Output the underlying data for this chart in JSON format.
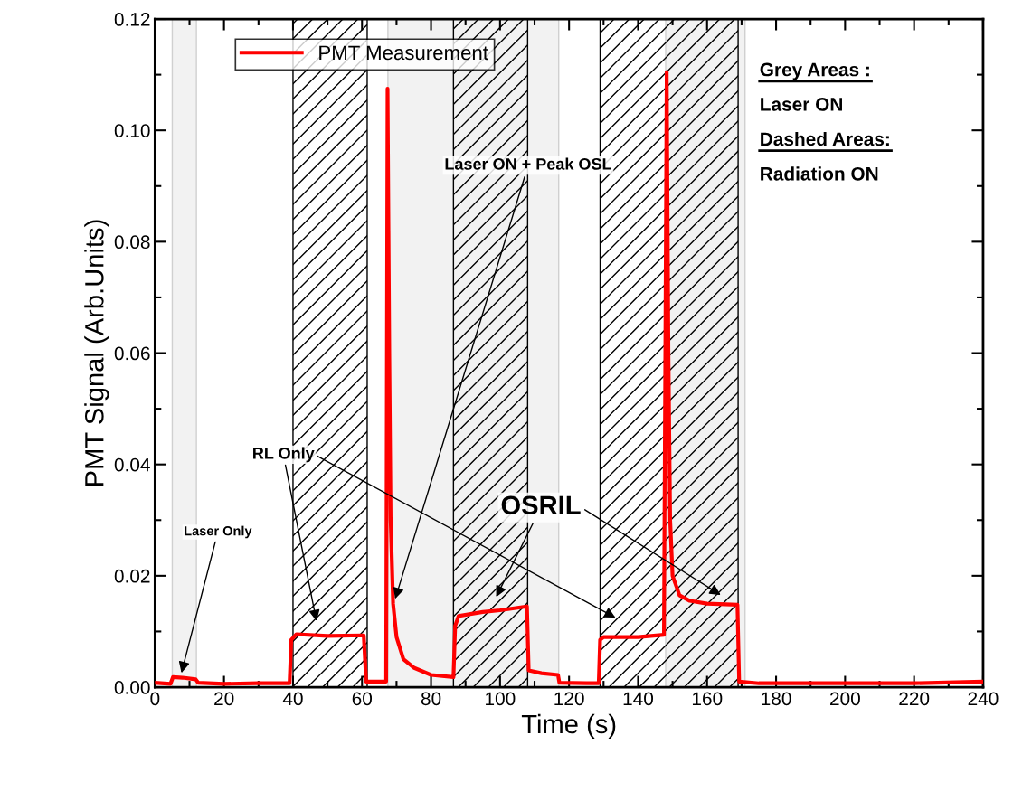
{
  "chart_data": {
    "type": "line",
    "xlabel": "Time (s)",
    "ylabel": "PMT Signal (Arb.Units)",
    "series": [
      {
        "name": "PMT Measurement",
        "color": "#ff0000",
        "x": [
          0,
          4.5,
          5.2,
          8,
          11.8,
          12.5,
          20,
          30,
          39,
          39.5,
          41,
          50,
          60.5,
          61.2,
          67,
          67.4,
          67.9,
          68.3,
          69,
          70,
          72,
          75,
          80,
          86.5,
          87,
          88,
          95,
          100,
          107.8,
          108.3,
          112,
          116.8,
          117.2,
          125,
          128.6,
          129,
          130,
          140,
          147.5,
          148.3,
          148.8,
          149.3,
          150,
          152,
          155,
          160,
          168.8,
          169.3,
          175,
          200,
          220,
          240
        ],
        "values": [
          0.0008,
          0.0006,
          0.0018,
          0.0017,
          0.0014,
          0.0008,
          0.0006,
          0.0007,
          0.0007,
          0.0085,
          0.0095,
          0.0092,
          0.0093,
          0.001,
          0.001,
          0.1075,
          0.06,
          0.03,
          0.015,
          0.009,
          0.005,
          0.0035,
          0.0022,
          0.0018,
          0.011,
          0.0128,
          0.0135,
          0.0138,
          0.0145,
          0.003,
          0.0025,
          0.0022,
          0.0008,
          0.0007,
          0.0007,
          0.0085,
          0.009,
          0.009,
          0.0094,
          0.1105,
          0.06,
          0.03,
          0.02,
          0.0165,
          0.0155,
          0.015,
          0.0148,
          0.001,
          0.0007,
          0.0007,
          0.0007,
          0.001
        ]
      }
    ],
    "xlim": [
      0,
      240
    ],
    "xticks": [
      0,
      20,
      40,
      60,
      80,
      100,
      120,
      140,
      160,
      180,
      200,
      220,
      240
    ],
    "ylim": [
      0,
      0.12
    ],
    "yticks": [
      {
        "value": 0,
        "label": "0.00"
      },
      {
        "value": 0.02,
        "label": "0.02"
      },
      {
        "value": 0.04,
        "label": "0.04"
      },
      {
        "value": 0.06,
        "label": "0.06"
      },
      {
        "value": 0.08,
        "label": "0.08"
      },
      {
        "value": 0.1,
        "label": "0.10"
      },
      {
        "value": 0.12,
        "label": "0.12"
      }
    ],
    "bands": [
      {
        "axis": "x",
        "from": 5,
        "to": 12,
        "color": "#f2f2f2"
      },
      {
        "axis": "x",
        "from": 67.5,
        "to": 117,
        "color": "#f2f2f2"
      },
      {
        "axis": "x",
        "from": 148,
        "to": 171,
        "color": "#f2f2f2"
      },
      {
        "axis": "x",
        "from": 40,
        "to": 61.5,
        "color": "#000000"
      },
      {
        "axis": "x",
        "from": 86.5,
        "to": 108,
        "color": "#000000"
      },
      {
        "axis": "x",
        "from": 129,
        "to": 169,
        "color": "#000000"
      }
    ],
    "annotations": [
      {
        "text": "Laser Only",
        "x": 7.3,
        "y": 0.0017
      },
      "RL Only",
      "OSRIL",
      {
        "text": "Laser ON + Peak OSL",
        "x": 69.2,
        "y": 0.015
      },
      "Grey Areas :",
      "Laser ON",
      "Dashed Areas:",
      "Radiation ON"
    ],
    "legend": "top left",
    "line_style": "solid",
    "marker": "none",
    "grid": false
  }
}
